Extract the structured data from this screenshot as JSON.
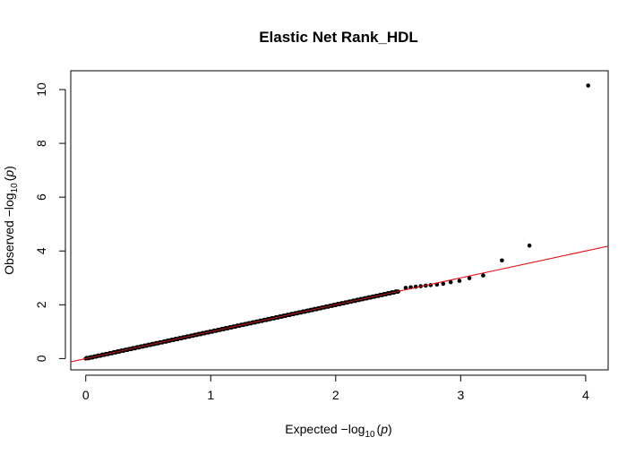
{
  "chart_data": {
    "type": "scatter",
    "title": "Elastic Net Rank_HDL",
    "xlabel": {
      "prefix": "Expected  −log",
      "sub": "10",
      "paren_open": "(",
      "var": "p",
      "paren_close": ")"
    },
    "ylabel": {
      "prefix": "Observed  −log",
      "sub": "10",
      "paren_open": "(",
      "var": "p",
      "paren_close": ")"
    },
    "xlim": [
      -0.12,
      4.18
    ],
    "ylim": [
      -0.42,
      10.7
    ],
    "x_ticks": [
      0,
      1,
      2,
      3,
      4
    ],
    "y_ticks": [
      0,
      2,
      4,
      6,
      8,
      10
    ],
    "x_tick_labels": [
      "0",
      "1",
      "2",
      "3",
      "4"
    ],
    "y_tick_labels": [
      "0",
      "2",
      "4",
      "6",
      "8",
      "10"
    ],
    "reference_line": {
      "slope": 1,
      "intercept": 0,
      "color": "#e31a1c"
    },
    "point_color": "#000000",
    "points": {
      "dense_range_x": [
        0,
        2.5
      ],
      "dense_slope": 1.0,
      "tail": [
        {
          "x": 2.56,
          "y": 2.63
        },
        {
          "x": 2.6,
          "y": 2.65
        },
        {
          "x": 2.64,
          "y": 2.67
        },
        {
          "x": 2.68,
          "y": 2.69
        },
        {
          "x": 2.72,
          "y": 2.71
        },
        {
          "x": 2.76,
          "y": 2.73
        },
        {
          "x": 2.81,
          "y": 2.75
        },
        {
          "x": 2.86,
          "y": 2.78
        },
        {
          "x": 2.92,
          "y": 2.84
        },
        {
          "x": 2.99,
          "y": 2.89
        },
        {
          "x": 3.07,
          "y": 2.99
        },
        {
          "x": 3.18,
          "y": 3.09
        },
        {
          "x": 3.33,
          "y": 3.65
        },
        {
          "x": 3.55,
          "y": 4.2
        },
        {
          "x": 4.02,
          "y": 10.15
        }
      ]
    }
  }
}
